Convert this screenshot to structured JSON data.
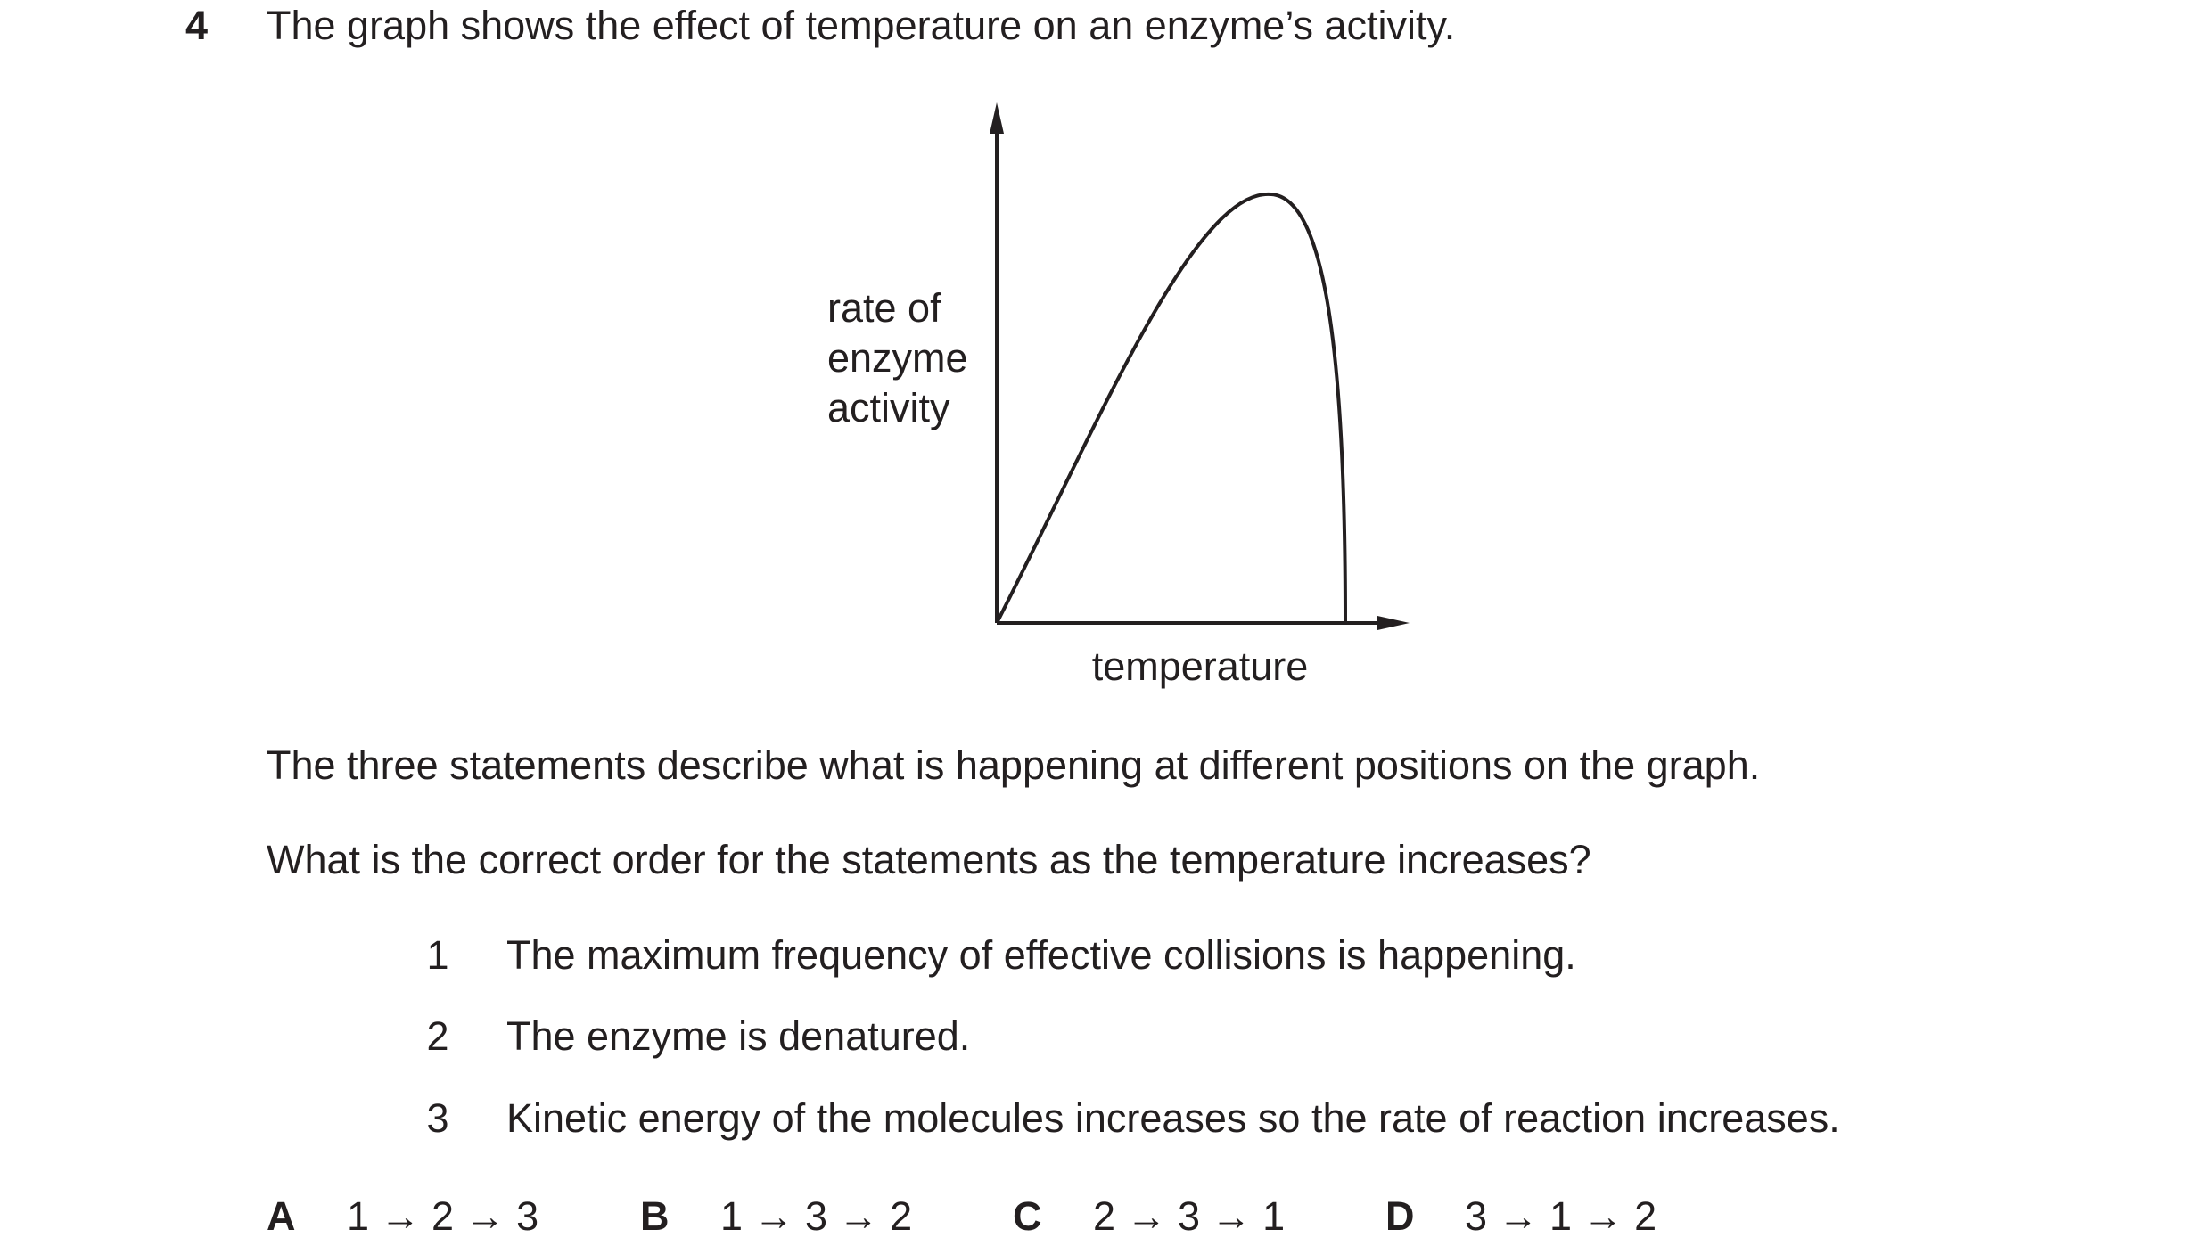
{
  "question": {
    "number": "4",
    "stem": "The graph shows the effect of temperature on an enzyme’s activity.",
    "graph": {
      "y_label": [
        "rate of",
        "enzyme",
        "activity"
      ],
      "x_label": "temperature"
    },
    "paragraphs": [
      "The three statements describe what is happening at different positions on the graph.",
      "What is the correct order for the statements as the temperature increases?"
    ],
    "statements": [
      {
        "number": "1",
        "text": "The maximum frequency of effective collisions is happening."
      },
      {
        "number": "2",
        "text": "The enzyme is denatured."
      },
      {
        "number": "3",
        "text": "Kinetic energy of the molecules increases so the rate of reaction increases."
      }
    ],
    "options": [
      {
        "letter": "A",
        "answer": "1 → 2 → 3"
      },
      {
        "letter": "B",
        "answer": "1 → 3 → 2"
      },
      {
        "letter": "C",
        "answer": "2 → 3 → 1"
      },
      {
        "letter": "D",
        "answer": "3 → 1 → 2"
      }
    ]
  }
}
